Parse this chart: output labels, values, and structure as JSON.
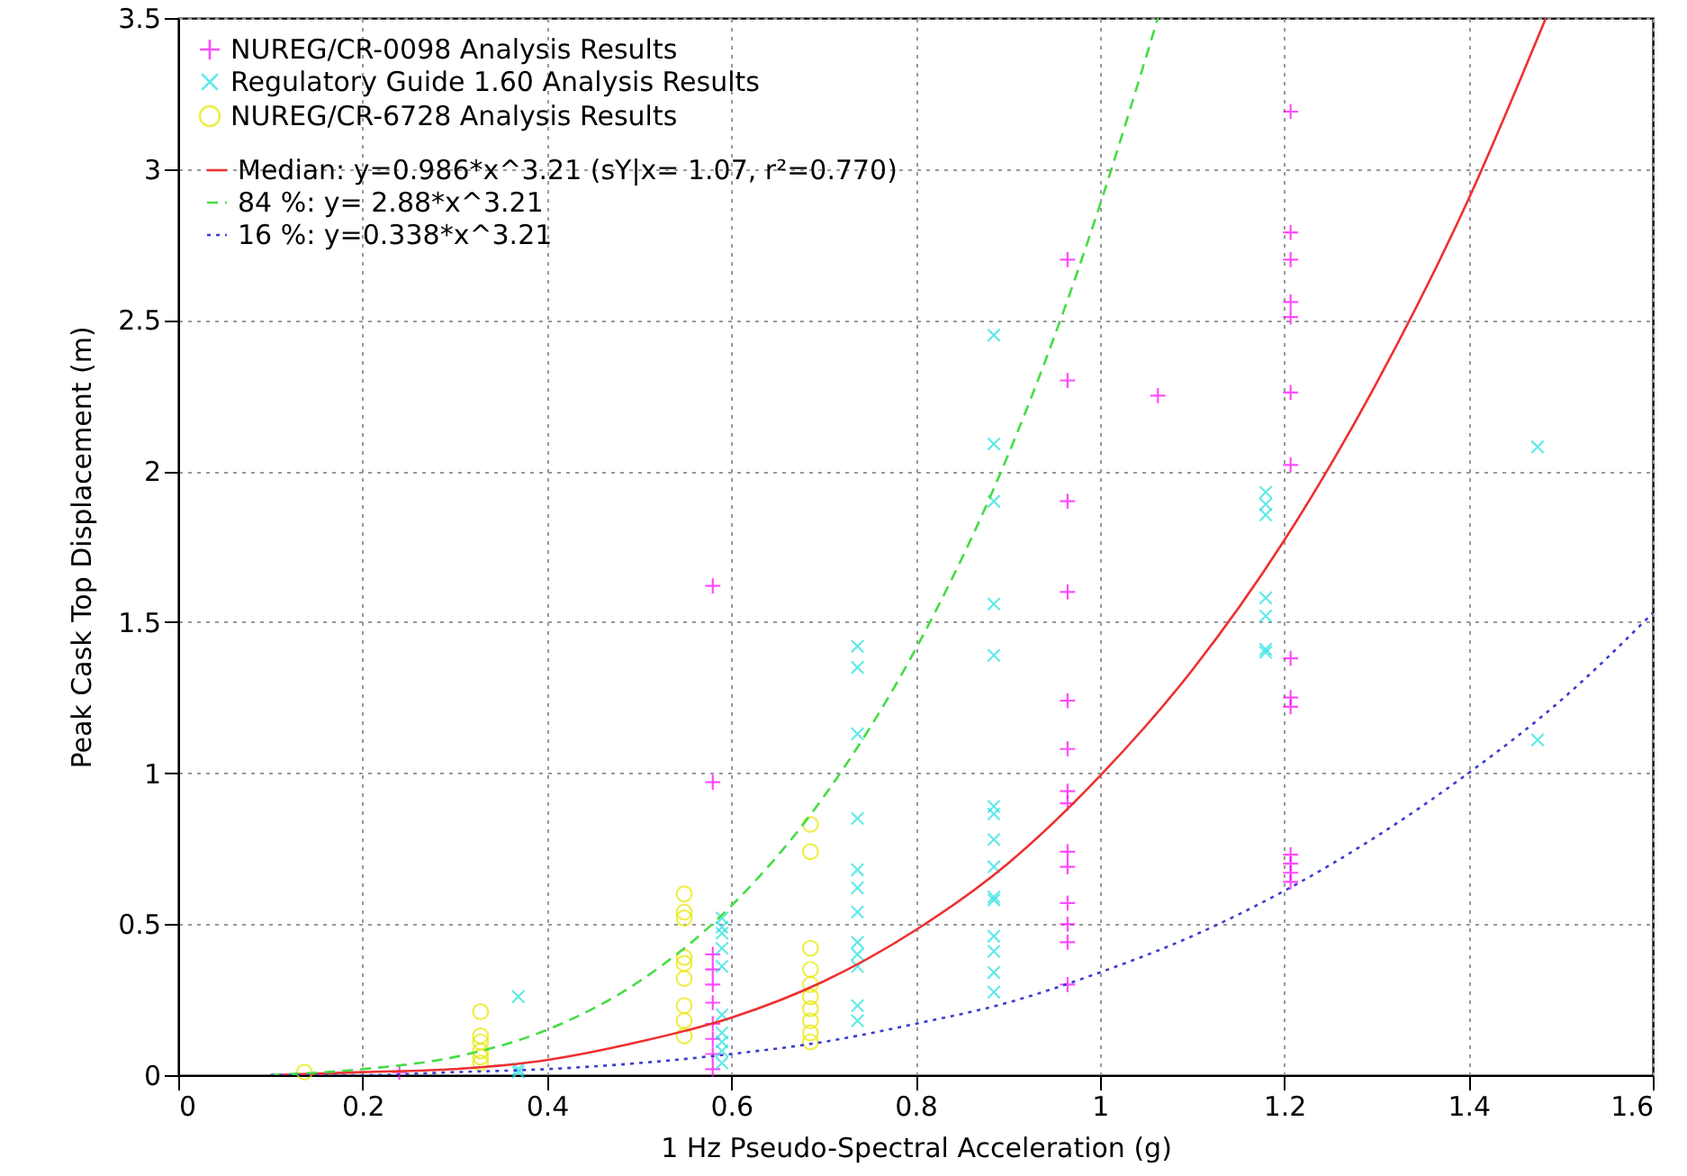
{
  "chart_data": {
    "type": "scatter",
    "xlabel": "1 Hz Pseudo-Spectral Acceleration (g)",
    "ylabel": "Peak Cask Top Displacement (m)",
    "xlim": [
      0,
      1.6
    ],
    "ylim": [
      0,
      3.5
    ],
    "xticks": [
      0,
      0.2,
      0.4,
      0.6,
      0.8,
      1,
      1.2,
      1.4,
      1.6
    ],
    "yticks": [
      0,
      0.5,
      1,
      1.5,
      2,
      2.5,
      3,
      3.5
    ],
    "grid": true,
    "legend": "top left",
    "series": [
      {
        "name": "NUREG/CR-0098 Analysis Results",
        "type": "scatter",
        "marker": "cross",
        "color": "#ff00ff",
        "x": [
          0.24,
          0.58,
          0.58,
          0.58,
          0.58,
          0.58,
          0.58,
          0.58,
          0.58,
          0.58,
          0.58,
          0.965,
          0.965,
          0.965,
          0.965,
          0.965,
          0.965,
          0.965,
          0.965,
          0.965,
          0.965,
          0.965,
          0.965,
          0.965,
          0.965,
          1.063,
          1.207,
          1.207,
          1.207,
          1.207,
          1.207,
          1.207,
          1.207,
          1.207,
          1.207,
          1.207,
          1.207,
          1.207,
          1.207,
          1.207
        ],
        "values": [
          0.01,
          1.62,
          0.97,
          0.4,
          0.35,
          0.3,
          0.24,
          0.17,
          0.12,
          0.07,
          0.02,
          2.7,
          2.3,
          1.9,
          1.6,
          1.24,
          1.08,
          0.94,
          0.9,
          0.74,
          0.69,
          0.57,
          0.5,
          0.44,
          0.3,
          2.25,
          3.19,
          2.79,
          2.7,
          2.56,
          2.51,
          2.26,
          2.02,
          1.38,
          1.25,
          1.22,
          0.73,
          0.7,
          0.67,
          0.64
        ]
      },
      {
        "name": "Regulatory Guide 1.60 Analysis Results",
        "type": "scatter",
        "marker": "x",
        "color": "#22e0e0",
        "x": [
          0.369,
          0.369,
          0.369,
          0.59,
          0.59,
          0.59,
          0.59,
          0.59,
          0.59,
          0.59,
          0.59,
          0.59,
          0.59,
          0.737,
          0.737,
          0.737,
          0.737,
          0.737,
          0.737,
          0.737,
          0.737,
          0.737,
          0.737,
          0.737,
          0.737,
          0.885,
          0.885,
          0.885,
          0.885,
          0.885,
          0.885,
          0.885,
          0.885,
          0.885,
          0.885,
          0.885,
          0.885,
          0.885,
          0.885,
          0.885,
          1.18,
          1.18,
          1.18,
          1.18,
          1.18,
          1.18,
          1.18,
          1.475,
          1.475
        ],
        "values": [
          0.26,
          0.01,
          0.02,
          0.52,
          0.49,
          0.47,
          0.42,
          0.36,
          0.2,
          0.14,
          0.11,
          0.08,
          0.04,
          1.42,
          1.35,
          1.13,
          0.85,
          0.68,
          0.62,
          0.54,
          0.44,
          0.4,
          0.36,
          0.23,
          0.18,
          2.45,
          2.09,
          1.9,
          1.56,
          1.39,
          0.89,
          0.865,
          0.78,
          0.69,
          0.59,
          0.58,
          0.46,
          0.41,
          0.34,
          0.275,
          1.93,
          1.89,
          1.855,
          1.58,
          1.52,
          1.41,
          1.4,
          2.08,
          1.11
        ]
      },
      {
        "name": "NUREG/CR-6728 Analysis Results",
        "type": "scatter",
        "marker": "circle",
        "color": "#e8e800",
        "x": [
          0.137,
          0.328,
          0.328,
          0.328,
          0.328,
          0.328,
          0.328,
          0.549,
          0.549,
          0.549,
          0.549,
          0.549,
          0.549,
          0.549,
          0.549,
          0.549,
          0.686,
          0.686,
          0.686,
          0.686,
          0.686,
          0.686,
          0.686,
          0.686,
          0.686,
          0.686
        ],
        "values": [
          0.01,
          0.21,
          0.13,
          0.11,
          0.08,
          0.06,
          0.04,
          0.6,
          0.54,
          0.52,
          0.39,
          0.37,
          0.32,
          0.23,
          0.18,
          0.13,
          0.83,
          0.74,
          0.42,
          0.35,
          0.3,
          0.26,
          0.22,
          0.18,
          0.14,
          0.11
        ]
      },
      {
        "name": "Median:  y=0.986*x^3.21  (sY|x= 1.07, r²=0.770)",
        "type": "line",
        "line_style": "solid",
        "color": "#ee3030",
        "x": [
          0.1,
          0.2,
          0.3,
          0.4,
          0.5,
          0.6,
          0.7,
          0.8,
          0.9,
          1.0,
          1.1,
          1.2,
          1.3,
          1.4,
          1.484
        ],
        "values": [
          0.0,
          0.01,
          0.02,
          0.05,
          0.11,
          0.19,
          0.31,
          0.48,
          0.7,
          0.99,
          1.34,
          1.77,
          2.29,
          2.9,
          3.5
        ]
      },
      {
        "name": "84 %:     y= 2.88*x^3.21",
        "type": "line",
        "line_style": "dashed",
        "color": "#44dd44",
        "x": [
          0.1,
          0.2,
          0.3,
          0.4,
          0.5,
          0.6,
          0.7,
          0.8,
          0.9,
          0.95,
          1.0,
          1.03,
          1.063
        ],
        "values": [
          0.0,
          0.02,
          0.06,
          0.15,
          0.31,
          0.56,
          0.92,
          1.41,
          2.05,
          2.44,
          2.88,
          3.17,
          3.5
        ]
      },
      {
        "name": "16 %:     y=0.338*x^3.21",
        "type": "line",
        "line_style": "dotted",
        "color": "#3c3cd0",
        "x": [
          0.1,
          0.2,
          0.3,
          0.4,
          0.5,
          0.6,
          0.7,
          0.8,
          0.9,
          1.0,
          1.1,
          1.2,
          1.3,
          1.4,
          1.5,
          1.6
        ],
        "values": [
          0.0,
          0.0,
          0.01,
          0.02,
          0.04,
          0.07,
          0.11,
          0.17,
          0.24,
          0.34,
          0.46,
          0.61,
          0.79,
          1.0,
          1.24,
          1.53
        ]
      }
    ]
  }
}
